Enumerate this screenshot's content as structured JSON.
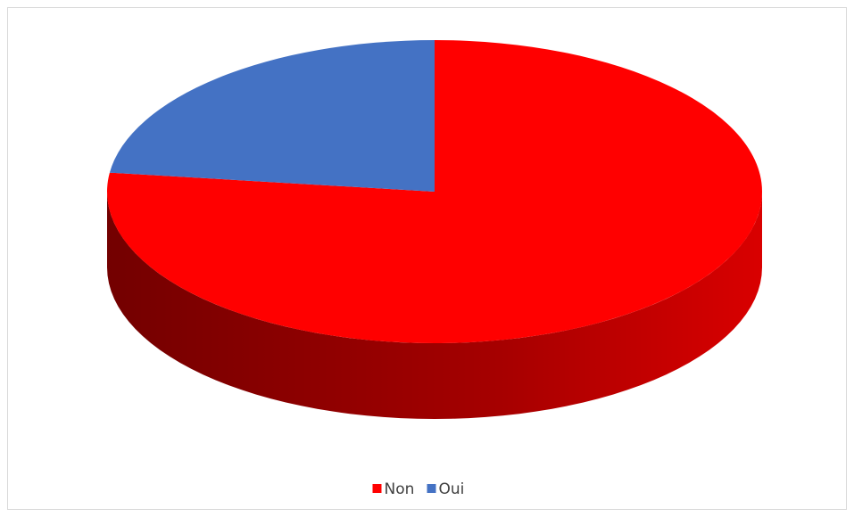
{
  "chart_data": {
    "type": "pie",
    "categories": [
      "Non",
      "Oui"
    ],
    "values": [
      77,
      23
    ],
    "colors": [
      "#ff0000",
      "#4472c4"
    ],
    "legend": "bottom"
  }
}
